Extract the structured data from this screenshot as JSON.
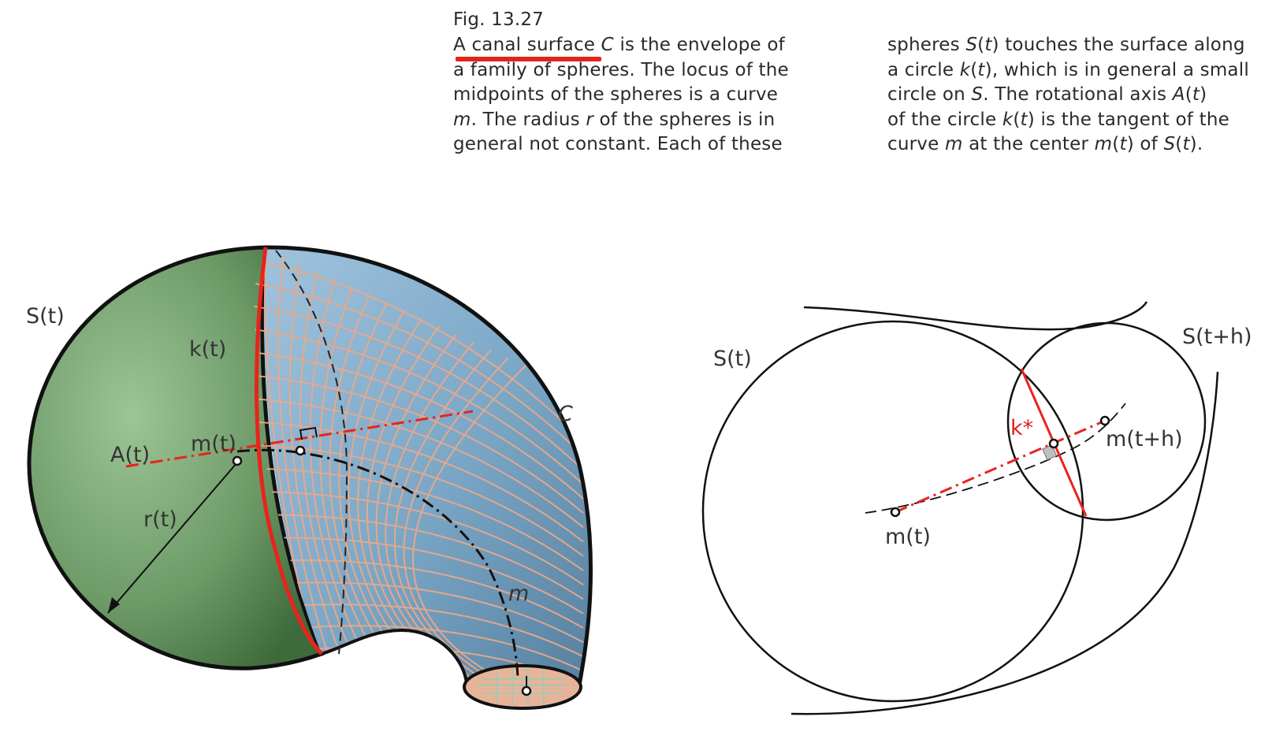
{
  "caption": {
    "fig_label": "Fig. 13.27",
    "left_lines": [
      [
        "A canal surface ",
        "C",
        " is the envelope of"
      ],
      [
        "a family of spheres. The locus of the"
      ],
      [
        "midpoints of the spheres is a curve"
      ],
      [
        "m",
        ". The radius ",
        "r",
        " of the spheres is in"
      ],
      [
        "general not constant. Each of these"
      ]
    ],
    "right_lines": [
      [
        "spheres ",
        "S",
        "(",
        "t",
        ") touches the surface along"
      ],
      [
        "a circle ",
        "k",
        "(",
        "t",
        "), which is in general a small"
      ],
      [
        "circle on ",
        "S",
        ". The rotational axis ",
        "A",
        "(",
        "t",
        ")"
      ],
      [
        "of the circle ",
        "k",
        "(",
        "t",
        ") is the tangent of the"
      ],
      [
        "curve ",
        "m",
        " at the center ",
        "m",
        "(",
        "t",
        ") of ",
        "S",
        "(",
        "t",
        ")."
      ]
    ]
  },
  "left_figure": {
    "labels": {
      "sphere": "S(t)",
      "circle": "k(t)",
      "surface": "C",
      "axis": "A(t)",
      "center": "m(t)",
      "radius": "r(t)",
      "curve": "m"
    },
    "colors": {
      "sphere": "#6e9a68",
      "surface": "#7fa9c8",
      "grid": "#eaa88a",
      "highlight": "#e8241c"
    }
  },
  "right_figure": {
    "labels": {
      "sphere": "S(t)",
      "sphere_next": "S(t+h)",
      "circle": "k*",
      "center": "m(t)",
      "center_next": "m(t+h)"
    }
  }
}
